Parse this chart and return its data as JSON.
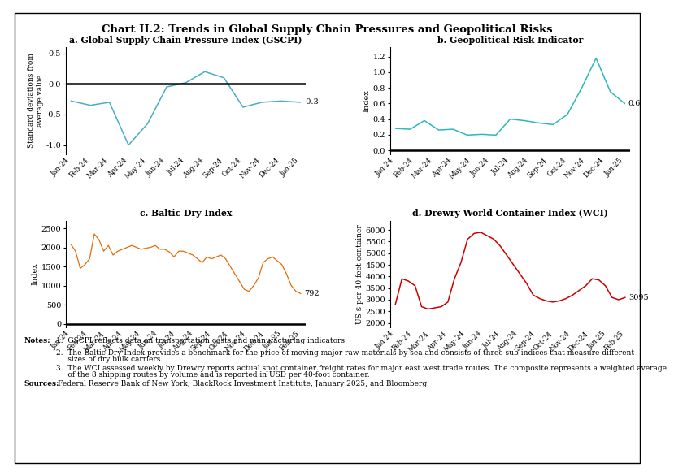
{
  "title": "Chart II.2: Trends in Global Supply Chain Pressures and Geopolitical Risks",
  "panel_a": {
    "title": "a. Global Supply Chain Pressure Index (GSCPI)",
    "ylabel": "Standard deviations from\naverage value",
    "color": "#4BACC6",
    "last_label": "-0.3",
    "ylim": [
      -1.15,
      0.6
    ],
    "yticks": [
      -1.0,
      -0.5,
      0.0,
      0.5
    ],
    "x_labels": [
      "Jan-24",
      "Feb-24",
      "Mar-24",
      "Apr-24",
      "May-24",
      "Jun-24",
      "Jul-24",
      "Aug-24",
      "Sep-24",
      "Oct-24",
      "Nov-24",
      "Dec-24",
      "Jan-25"
    ],
    "y_values": [
      -0.28,
      -0.35,
      -0.3,
      -1.0,
      -0.65,
      -0.05,
      0.02,
      0.2,
      0.1,
      -0.38,
      -0.3,
      -0.28,
      -0.3
    ]
  },
  "panel_b": {
    "title": "b. Geopolitical Risk Indicator",
    "ylabel": "Index",
    "color": "#2EB8B8",
    "last_label": "0.6",
    "ylim": [
      -0.05,
      1.32
    ],
    "yticks": [
      0.0,
      0.2,
      0.4,
      0.6,
      0.8,
      1.0,
      1.2
    ],
    "x_labels": [
      "Jan-24",
      "Feb-24",
      "Mar-24",
      "Apr-24",
      "May-24",
      "Jun-24",
      "Jul-24",
      "Aug-24",
      "Sep-24",
      "Oct-24",
      "Nov-24",
      "Dec-24",
      "Jan-25"
    ],
    "y_values": [
      0.28,
      0.27,
      0.38,
      0.26,
      0.27,
      0.195,
      0.205,
      0.195,
      0.4,
      0.38,
      0.35,
      0.33,
      0.46,
      0.8,
      1.18,
      0.75,
      0.6
    ]
  },
  "panel_c": {
    "title": "c. Baltic Dry Index",
    "ylabel": "Index",
    "color": "#E36C09",
    "last_label": "792",
    "ylim": [
      -100,
      2700
    ],
    "yticks": [
      0,
      500,
      1000,
      1500,
      2000,
      2500
    ],
    "x_labels": [
      "Jan-24",
      "Feb-24",
      "Mar-24",
      "Apr-24",
      "May-24",
      "Jun-24",
      "Jul-24",
      "Aug-24",
      "Sep-24",
      "Oct-24",
      "Nov-24",
      "Dec-24",
      "Jan-25",
      "Feb-25"
    ],
    "y_values": [
      2080,
      1900,
      1450,
      1550,
      1700,
      2350,
      2200,
      1900,
      2050,
      1800,
      1900,
      1950,
      2000,
      2050,
      2000,
      1950,
      1980,
      2000,
      2050,
      1950,
      1950,
      1880,
      1750,
      1900,
      1900,
      1850,
      1800,
      1700,
      1600,
      1750,
      1700,
      1750,
      1800,
      1700,
      1500,
      1300,
      1100,
      900,
      850,
      1000,
      1200,
      1600,
      1700,
      1750,
      1650,
      1550,
      1300,
      1000,
      850,
      792
    ]
  },
  "panel_d": {
    "title": "d. Drewry World Container Index (WCI)",
    "ylabel": "US $ per 40 feet container",
    "color": "#CC0000",
    "last_label": "3095",
    "ylim": [
      1800,
      6400
    ],
    "yticks": [
      2000,
      2500,
      3000,
      3500,
      4000,
      4500,
      5000,
      5500,
      6000
    ],
    "x_labels": [
      "Jan-24",
      "Feb-24",
      "Mar-24",
      "Apr-24",
      "May-24",
      "Jun-24",
      "Jul-24",
      "Aug-24",
      "Sep-24",
      "Oct-24",
      "Nov-24",
      "Dec-24",
      "Jan-25",
      "Feb-25"
    ],
    "y_values": [
      2800,
      3900,
      3800,
      3600,
      2700,
      2600,
      2650,
      2700,
      2900,
      3900,
      4600,
      5600,
      5850,
      5900,
      5750,
      5600,
      5300,
      4900,
      4500,
      4100,
      3700,
      3200,
      3050,
      2950,
      2900,
      2950,
      3050,
      3200,
      3400,
      3600,
      3900,
      3850,
      3600,
      3100,
      3000,
      3095
    ]
  },
  "note1": "GSCPI reflects data on transportation costs and manufacturing indicators.",
  "note2": "The Baltic Dry Index provides a benchmark for the price of moving major raw materials by sea and consists of three sub-indices that measure different sizes of dry bulk carriers.",
  "note3": "The WCI assessed weekly by Drewry reports actual spot container freight rates for major east west trade routes. The composite represents a weighted average of the 8 shipping routes by volume and is reported in USD per 40-foot container.",
  "sources": "Federal Reserve Bank of New York; BlackRock Investment Institute, January 2025; and Bloomberg."
}
